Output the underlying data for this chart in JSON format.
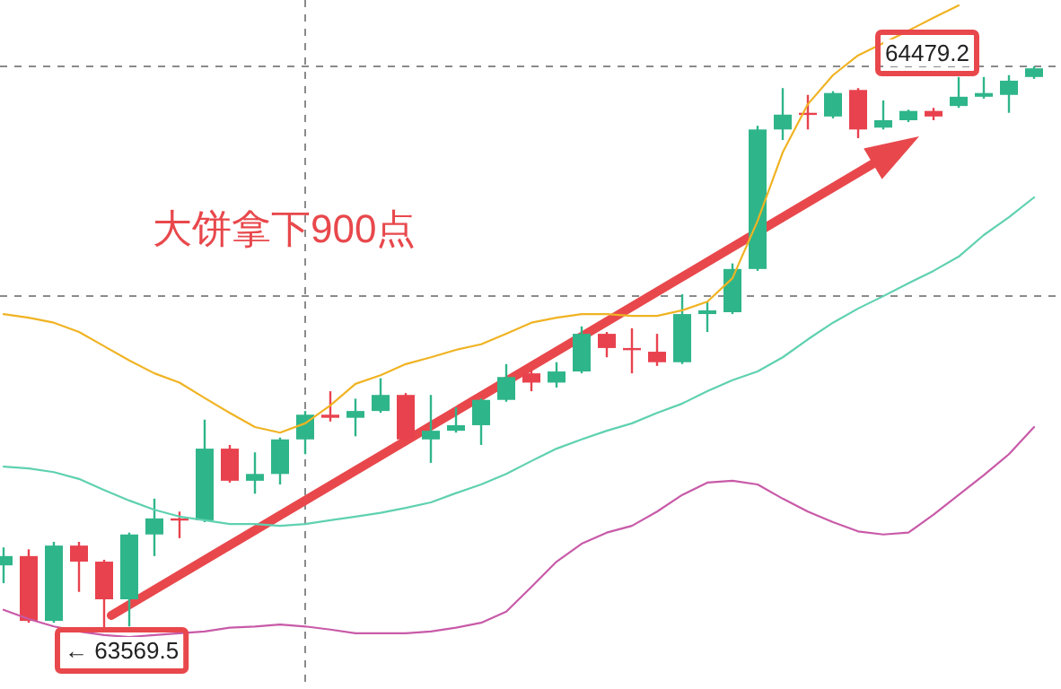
{
  "chart_data": {
    "type": "candlestick",
    "annotations": [
      "大饼拿下900点",
      {
        "text": "← 63569.5",
        "y": 63569.5
      },
      {
        "text": "64479.2",
        "y": 64479.2
      }
    ],
    "categories": [
      null,
      null,
      null,
      null,
      null,
      null,
      null,
      null,
      null,
      null,
      null,
      null,
      null,
      null,
      null,
      null,
      null,
      null,
      null,
      null,
      null,
      null,
      null,
      null,
      null,
      null,
      null,
      null,
      null,
      null,
      null,
      null,
      null,
      null,
      null,
      null,
      null,
      null,
      null,
      null,
      null,
      null
    ],
    "ylim": [
      63470.7,
      64586.7
    ],
    "ohlc": [
      [
        63671,
        63700,
        63642,
        63686
      ],
      [
        63686,
        63697,
        63578,
        63581
      ],
      [
        63581,
        63709,
        63578,
        63703
      ],
      [
        63703,
        63709,
        63628,
        63677
      ],
      [
        63677,
        63680,
        63569.5,
        63616
      ],
      [
        63616,
        63724,
        63572,
        63721
      ],
      [
        63721,
        63779,
        63686,
        63747
      ],
      [
        63747,
        63758,
        63715,
        63744
      ],
      [
        63744,
        63907,
        63741,
        63860
      ],
      [
        63860,
        63866,
        63805,
        63808
      ],
      [
        63808,
        63854,
        63787,
        63819
      ],
      [
        63819,
        63878,
        63802,
        63875
      ],
      [
        63875,
        63921,
        63851,
        63915
      ],
      [
        63915,
        63953,
        63904,
        63910
      ],
      [
        63910,
        63941,
        63880,
        63921
      ],
      [
        63921,
        63974,
        63918,
        63947
      ],
      [
        63947,
        63950,
        63872,
        63875
      ],
      [
        63875,
        63947,
        63837,
        63889
      ],
      [
        63889,
        63927,
        63886,
        63898
      ],
      [
        63898,
        63941,
        63866,
        63939
      ],
      [
        63939,
        63997,
        63936,
        63976
      ],
      [
        63982,
        63988,
        63953,
        63967
      ],
      [
        63967,
        64000,
        63959,
        63985
      ],
      [
        63985,
        64058,
        63982,
        64046
      ],
      [
        64046,
        64049,
        64008,
        64023
      ],
      [
        64023,
        64055,
        63982,
        64020
      ],
      [
        64017,
        64046,
        63994,
        64000
      ],
      [
        64000,
        64110,
        63997,
        64078
      ],
      [
        64078,
        64098,
        64049,
        64084
      ],
      [
        64081,
        64160,
        64078,
        64151
      ],
      [
        64151,
        64383,
        64148,
        64377
      ],
      [
        64377,
        64444,
        64360,
        64401
      ],
      [
        64404,
        64433,
        64377,
        64401
      ],
      [
        64398,
        64439,
        64395,
        64436
      ],
      [
        64441,
        64444,
        64363,
        64377
      ],
      [
        64380,
        64424,
        64377,
        64392
      ],
      [
        64392,
        64409,
        64389,
        64407
      ],
      [
        64407,
        64412,
        64392,
        64398
      ],
      [
        64415,
        64462,
        64412,
        64430
      ],
      [
        64430,
        64462,
        64427,
        64436
      ],
      [
        64433,
        64465,
        64404,
        64456
      ],
      [
        64462,
        64479.2,
        64459,
        64476
      ]
    ],
    "colors": [
      "#2fb58a",
      "#e8424e",
      "#2fb58a",
      "#e8424e",
      "#e8424e",
      "#2fb58a",
      "#2fb58a",
      "#e8424e",
      "#2fb58a",
      "#e8424e",
      "#2fb58a",
      "#2fb58a",
      "#2fb58a",
      "#e8424e",
      "#2fb58a",
      "#2fb58a",
      "#e8424e",
      "#2fb58a",
      "#2fb58a",
      "#2fb58a",
      "#2fb58a",
      "#e8424e",
      "#2fb58a",
      "#2fb58a",
      "#e8424e",
      "#e8424e",
      "#e8424e",
      "#2fb58a",
      "#2fb58a",
      "#2fb58a",
      "#2fb58a",
      "#2fb58a",
      "#e8424e",
      "#2fb58a",
      "#e8424e",
      "#2fb58a",
      "#2fb58a",
      "#e8424e",
      "#2fb58a",
      "#2fb58a",
      "#2fb58a",
      "#2fb58a"
    ],
    "series": [
      {
        "type": "line",
        "color": "#f0b323",
        "values": [
          64078,
          64072,
          64064,
          64049,
          64026,
          64003,
          63982,
          63967,
          63942,
          63918,
          63895,
          63886,
          63901,
          63930,
          63965,
          63979,
          63997,
          64008,
          64020,
          64029,
          64046,
          64064,
          64072,
          64078,
          64078,
          64075,
          64075,
          64084,
          64098,
          64136,
          64229,
          64340,
          64418,
          64465,
          64497,
          64517,
          64537,
          64558,
          64578,
          null,
          null,
          null
        ]
      },
      {
        "type": "line",
        "color": "#5fd1b0",
        "values": [
          63831,
          63828,
          63822,
          63811,
          63793,
          63776,
          63761,
          63750,
          63744,
          63738,
          63738,
          63735,
          63738,
          63744,
          63750,
          63756,
          63764,
          63773,
          63788,
          63802,
          63819,
          63840,
          63860,
          63875,
          63889,
          63901,
          63918,
          63933,
          63953,
          63971,
          63985,
          64008,
          64037,
          64064,
          64087,
          64107,
          64128,
          64148,
          64171,
          64206,
          64235,
          64267
        ]
      },
      {
        "type": "line",
        "color": "#c85aa8",
        "values": [
          63599,
          63584,
          63572,
          63564,
          63558,
          63555,
          63558,
          63561,
          63564,
          63570,
          63572,
          63575,
          63572,
          63567,
          63561,
          63561,
          63561,
          63564,
          63570,
          63578,
          63596,
          63636,
          63677,
          63706,
          63724,
          63735,
          63758,
          63785,
          63805,
          63808,
          63802,
          63779,
          63758,
          63741,
          63726,
          63721,
          63724,
          63753,
          63785,
          63817,
          63851,
          63895
        ]
      }
    ],
    "ref_lines": [
      {
        "axis": "y",
        "value": 64479.2,
        "line_style": "dashed",
        "color": "#8a8a8a"
      },
      {
        "axis": "y",
        "value": 64107,
        "line_style": "dashed",
        "color": "#8a8a8a"
      }
    ]
  }
}
